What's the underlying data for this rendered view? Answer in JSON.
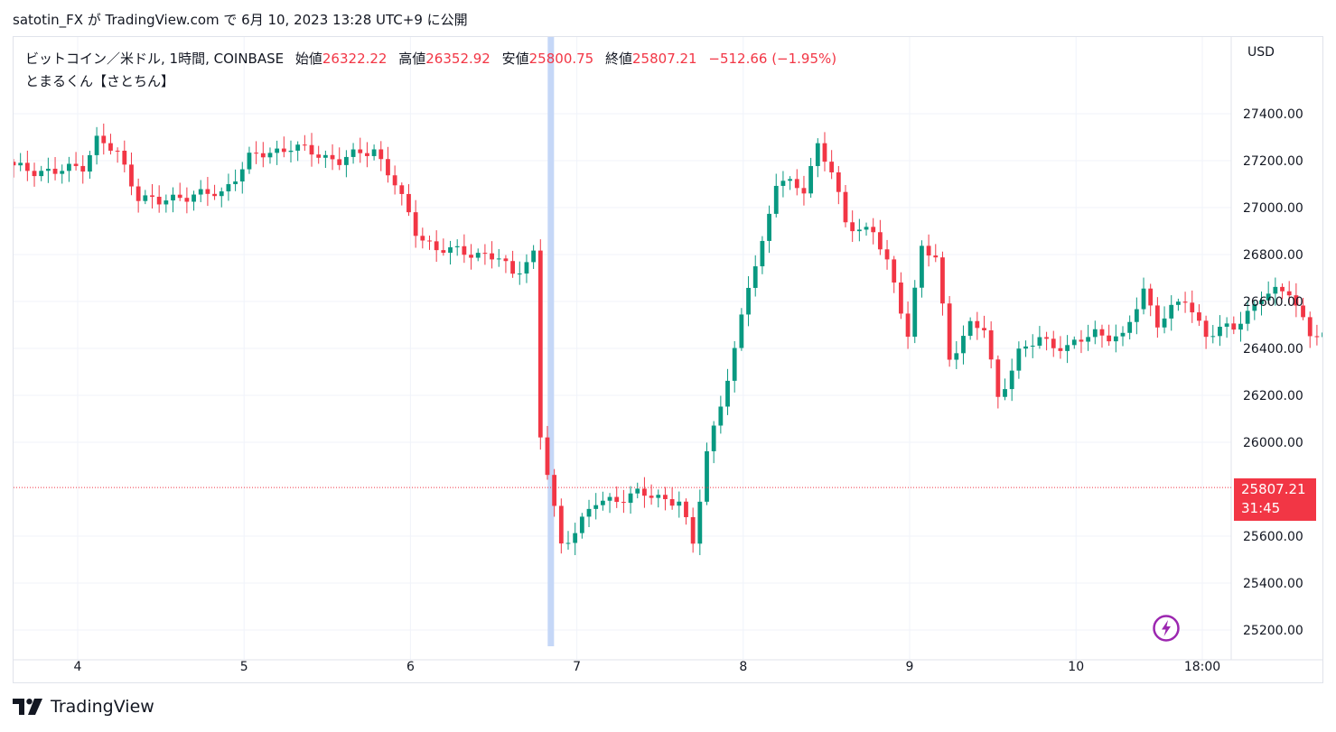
{
  "caption": {
    "author": "satotin_FX",
    "text": "satotin_FX が TradingView.com で 6月 10, 2023 13:28 UTC+9 に公開"
  },
  "legend": {
    "symbol": "ビットコイン／米ドル, 1時間, COINBASE",
    "open_label": "始値",
    "open_value": "26322.22",
    "high_label": "高値",
    "high_value": "26352.92",
    "low_label": "安値",
    "low_value": "25800.75",
    "close_label": "終値",
    "close_value": "25807.21",
    "change": "−512.66 (−1.95%)",
    "indicator": "とまるくん【さとちん】"
  },
  "axis": {
    "currency": "USD",
    "y_ticks": [
      "27400.00",
      "27200.00",
      "27000.00",
      "26800.00",
      "26600.00",
      "26400.00",
      "26200.00",
      "26000.00",
      "25600.00",
      "25400.00",
      "25200.00"
    ],
    "x_ticks": [
      "4",
      "5",
      "6",
      "7",
      "8",
      "9",
      "10",
      "18:00"
    ]
  },
  "last_price": {
    "value": "25807.21",
    "countdown": "31:45"
  },
  "branding": {
    "logo_text": "TradingView"
  },
  "colors": {
    "up": "#089981",
    "down": "#f23645",
    "highlight": "#c5d7f7",
    "grid": "#f0f3fa"
  },
  "chart_data": {
    "type": "candlestick",
    "timeframe": "1h",
    "x_range_days": [
      "4",
      "5",
      "6",
      "7",
      "8",
      "9",
      "10"
    ],
    "ylim": [
      25100,
      27600
    ],
    "last_close": 25807.21,
    "anchors": [
      {
        "t": 0,
        "p": 27170
      },
      {
        "t": 6,
        "p": 27150
      },
      {
        "t": 10,
        "p": 27180
      },
      {
        "t": 12,
        "p": 27290
      },
      {
        "t": 15,
        "p": 27230
      },
      {
        "t": 18,
        "p": 27050
      },
      {
        "t": 21,
        "p": 27020
      },
      {
        "t": 24,
        "p": 27050
      },
      {
        "t": 30,
        "p": 27060
      },
      {
        "t": 34,
        "p": 27210
      },
      {
        "t": 40,
        "p": 27260
      },
      {
        "t": 47,
        "p": 27200
      },
      {
        "t": 52,
        "p": 27250
      },
      {
        "t": 55,
        "p": 27100
      },
      {
        "t": 58,
        "p": 26900
      },
      {
        "t": 61,
        "p": 26820
      },
      {
        "t": 66,
        "p": 26810
      },
      {
        "t": 70,
        "p": 26780
      },
      {
        "t": 72,
        "p": 26720
      },
      {
        "t": 75,
        "p": 26800
      },
      {
        "t": 76,
        "p": 26020
      },
      {
        "t": 79,
        "p": 25560
      },
      {
        "t": 81,
        "p": 25630
      },
      {
        "t": 84,
        "p": 25740
      },
      {
        "t": 90,
        "p": 25780
      },
      {
        "t": 96,
        "p": 25750
      },
      {
        "t": 98,
        "p": 25560
      },
      {
        "t": 100,
        "p": 25960
      },
      {
        "t": 104,
        "p": 26380
      },
      {
        "t": 106,
        "p": 26670
      },
      {
        "t": 108,
        "p": 26850
      },
      {
        "t": 110,
        "p": 27110
      },
      {
        "t": 114,
        "p": 27080
      },
      {
        "t": 116,
        "p": 27270
      },
      {
        "t": 118,
        "p": 27150
      },
      {
        "t": 120,
        "p": 26930
      },
      {
        "t": 124,
        "p": 26900
      },
      {
        "t": 126,
        "p": 26760
      },
      {
        "t": 129,
        "p": 26470
      },
      {
        "t": 131,
        "p": 26830
      },
      {
        "t": 133,
        "p": 26780
      },
      {
        "t": 135,
        "p": 26360
      },
      {
        "t": 138,
        "p": 26500
      },
      {
        "t": 140,
        "p": 26480
      },
      {
        "t": 142,
        "p": 26190
      },
      {
        "t": 145,
        "p": 26380
      },
      {
        "t": 148,
        "p": 26440
      },
      {
        "t": 152,
        "p": 26400
      },
      {
        "t": 156,
        "p": 26470
      },
      {
        "t": 160,
        "p": 26440
      },
      {
        "t": 163,
        "p": 26650
      },
      {
        "t": 165,
        "p": 26510
      },
      {
        "t": 169,
        "p": 26610
      },
      {
        "t": 172,
        "p": 26460
      },
      {
        "t": 176,
        "p": 26490
      },
      {
        "t": 180,
        "p": 26620
      },
      {
        "t": 184,
        "p": 26650
      },
      {
        "t": 187,
        "p": 26460
      },
      {
        "t": 191,
        "p": 26430
      },
      {
        "t": 194,
        "p": 26470
      },
      {
        "t": 196,
        "p": 26460
      },
      {
        "t": 198,
        "p": 26330
      },
      {
        "t": 199,
        "p": 25807.21
      }
    ],
    "highlight_bar_t": 77.5
  }
}
